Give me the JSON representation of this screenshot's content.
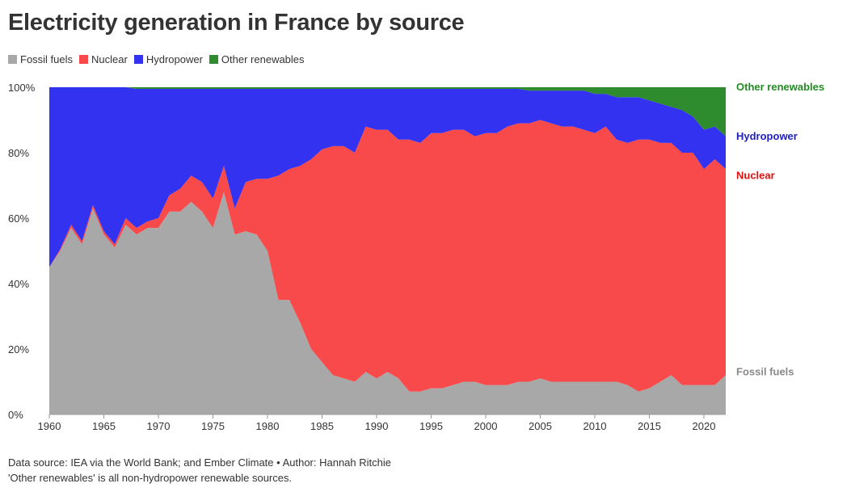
{
  "title": "Electricity generation in France by source",
  "legend": [
    {
      "label": "Fossil fuels",
      "color": "#a8a8a8"
    },
    {
      "label": "Nuclear",
      "color": "#f84a4a"
    },
    {
      "label": "Hydropower",
      "color": "#3232f0"
    },
    {
      "label": "Other renewables",
      "color": "#2e8b2e"
    }
  ],
  "footer": {
    "line1": "Data source: IEA via the World Bank; and Ember Climate • Author: Hannah Ritchie",
    "line2": "'Other renewables' is all non-hydropower renewable sources."
  },
  "end_labels": {
    "other": "Other renewables",
    "hydro": "Hydropower",
    "nuclear": "Nuclear",
    "fossil": "Fossil fuels"
  },
  "colors": {
    "fossil": "#a8a8a8",
    "nuclear": "#f84a4a",
    "hydro": "#3232f0",
    "other": "#2e8b2e",
    "fossil_text": "#888888",
    "nuclear_text": "#e01010",
    "hydro_text": "#2020c0",
    "other_text": "#228b22"
  },
  "chart_data": {
    "type": "area",
    "stacked": true,
    "x": [
      1960,
      1961,
      1962,
      1963,
      1964,
      1965,
      1966,
      1967,
      1968,
      1969,
      1970,
      1971,
      1972,
      1973,
      1974,
      1975,
      1976,
      1977,
      1978,
      1979,
      1980,
      1981,
      1982,
      1983,
      1984,
      1985,
      1986,
      1987,
      1988,
      1989,
      1990,
      1991,
      1992,
      1993,
      1994,
      1995,
      1996,
      1997,
      1998,
      1999,
      2000,
      2001,
      2002,
      2003,
      2004,
      2005,
      2006,
      2007,
      2008,
      2009,
      2010,
      2011,
      2012,
      2013,
      2014,
      2015,
      2016,
      2017,
      2018,
      2019,
      2020,
      2021,
      2022
    ],
    "series": [
      {
        "name": "Fossil fuels",
        "values": [
          45,
          50,
          57,
          52,
          63,
          55,
          51,
          58,
          55,
          57,
          57,
          62,
          62,
          65,
          62,
          57,
          68,
          55,
          56,
          55,
          50,
          35,
          35,
          28,
          20,
          16,
          12,
          11,
          10,
          13,
          11,
          13,
          11,
          7,
          7,
          8,
          8,
          9,
          10,
          10,
          9,
          9,
          9,
          10,
          10,
          11,
          10,
          10,
          10,
          10,
          10,
          10,
          10,
          9,
          7,
          8,
          10,
          12,
          9,
          9,
          9,
          9,
          12
        ]
      },
      {
        "name": "Nuclear",
        "values": [
          0,
          0.5,
          1,
          1,
          1,
          1,
          1,
          2,
          2,
          2,
          3,
          5,
          7,
          8,
          9,
          9,
          8,
          8,
          15,
          17,
          22,
          38,
          40,
          48,
          58,
          65,
          70,
          71,
          70,
          75,
          76,
          74,
          73,
          77,
          76,
          78,
          78,
          78,
          77,
          75,
          77,
          77,
          79,
          79,
          79,
          79,
          79,
          78,
          78,
          77,
          76,
          78,
          74,
          74,
          77,
          76,
          73,
          71,
          71,
          71,
          66,
          69,
          63
        ]
      },
      {
        "name": "Hydropower",
        "values": [
          55,
          49.5,
          42,
          47,
          36,
          44,
          48,
          40,
          42.5,
          40.5,
          39.5,
          32.5,
          30.5,
          26.5,
          28.5,
          33.5,
          23.5,
          36.5,
          28.5,
          27.5,
          27.5,
          26.5,
          24.5,
          23.5,
          21.5,
          18.5,
          17.5,
          17.5,
          19.5,
          11.5,
          12.5,
          12.5,
          15.5,
          15.5,
          16.5,
          13.5,
          13.5,
          12.5,
          12.5,
          14.5,
          13.5,
          13.5,
          11.5,
          10.5,
          10,
          9,
          10,
          11,
          11,
          12,
          12,
          10,
          13,
          14,
          13,
          12,
          12,
          11,
          13,
          11,
          12,
          10,
          10
        ]
      },
      {
        "name": "Other renewables",
        "values": [
          0,
          0,
          0,
          0,
          0,
          0,
          0.2,
          0.3,
          0.5,
          0.5,
          0.5,
          0.5,
          0.5,
          0.5,
          0.5,
          0.5,
          0.5,
          0.5,
          0.5,
          0.5,
          0.5,
          0.5,
          0.5,
          0.5,
          0.5,
          0.5,
          0.5,
          0.5,
          0.5,
          0.5,
          0.5,
          0.5,
          0.5,
          0.5,
          0.5,
          0.5,
          0.5,
          0.5,
          0.5,
          0.5,
          0.5,
          0.5,
          0.5,
          0.5,
          1,
          1,
          1,
          1,
          1,
          1,
          2,
          2,
          3,
          3,
          3,
          4,
          5,
          6,
          7,
          9,
          13,
          12,
          15
        ]
      }
    ],
    "ylim": [
      0,
      100
    ],
    "y_ticks": [
      "0%",
      "20%",
      "40%",
      "60%",
      "80%",
      "100%"
    ],
    "y_tick_values": [
      0,
      20,
      40,
      60,
      80,
      100
    ],
    "x_ticks": [
      1960,
      1965,
      1970,
      1975,
      1980,
      1985,
      1990,
      1995,
      2000,
      2005,
      2010,
      2015,
      2020
    ],
    "grid": true
  }
}
